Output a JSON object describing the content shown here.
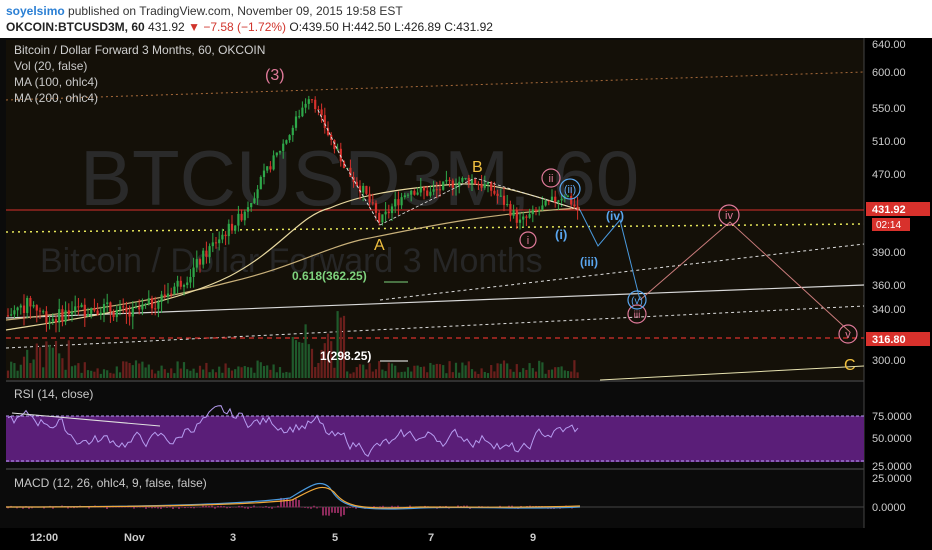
{
  "header": {
    "author": "soyelsimo",
    "published_text": "published on TradingView.com, November 09, 2015 19:58 EST",
    "symbol": "OKCOIN:BTCUSD3M, 60",
    "last": "431.92",
    "change": "−7.58 (−1.72%)",
    "open": "O:439.50",
    "high": "H:442.50",
    "low": "L:426.89",
    "close": "C:431.92"
  },
  "chart_title": "Bitcoin / Dollar Forward 3 Months, 60, OKCOIN",
  "indicators": [
    "Vol (20, false)",
    "MA (100, ohlc4)",
    "MA (200, ohlc4)"
  ],
  "watermark": {
    "big": "BTCUSD3M, 60",
    "small": "Bitcoin / Dollar Forward 3 Months"
  },
  "price_axis": [
    "640.00",
    "600.00",
    "550.00",
    "510.00",
    "470.00",
    "431.92",
    "02:14",
    "390.00",
    "360.00",
    "340.00",
    "316.80",
    "300.00"
  ],
  "time_axis": [
    "12:00",
    "Nov",
    "3",
    "5",
    "7",
    "9"
  ],
  "wave_labels": {
    "w3": "(3)",
    "A": "A",
    "B": "B",
    "C": "C",
    "i": "i",
    "ii": "ii",
    "iii": "iii",
    "iv": "iv",
    "v": "v",
    "wi": "(i)",
    "wii": "(ii)",
    "wiii": "(iii)",
    "wiv": "(iv)",
    "wv": "(v)"
  },
  "fib_labels": {
    "fib618": "0.618(362.25)",
    "fib1": "1(298.25)"
  },
  "rsi": {
    "title": "RSI (14, close)",
    "axis": [
      "75.0000",
      "50.0000",
      "25.0000"
    ]
  },
  "macd": {
    "title": "MACD (12, 26, ohlc4, 9, false, false)",
    "axis": [
      "25.0000",
      "0.0000"
    ]
  },
  "colors": {
    "up": "#2ea84a",
    "down": "#d8312c",
    "accent": "#f0a83a",
    "rsi_band": "#5a1e78",
    "rsi_line": "#b69cf0"
  }
}
